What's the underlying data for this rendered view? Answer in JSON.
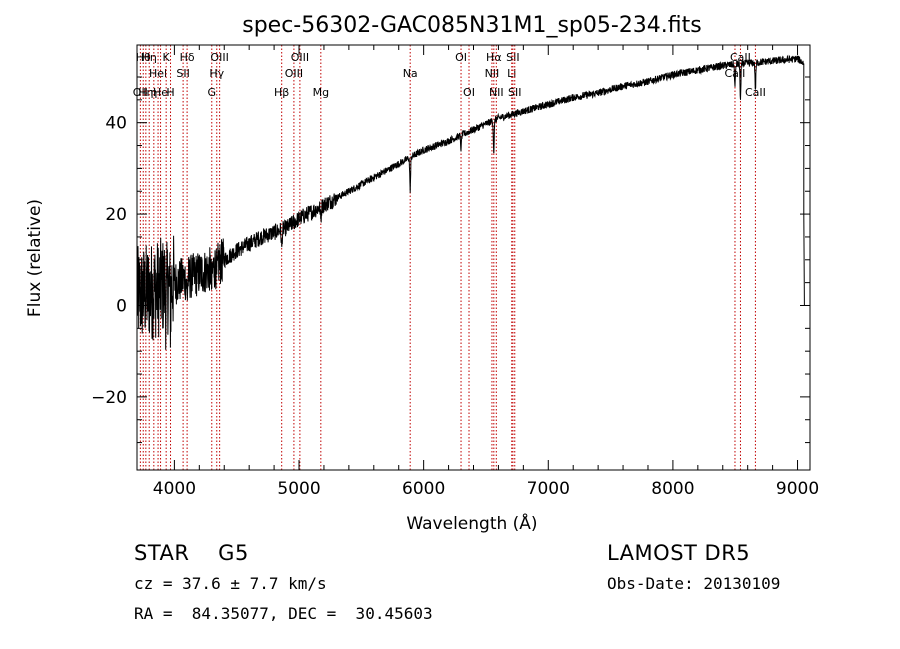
{
  "chart_data": {
    "type": "line",
    "title": "spec-56302-GAC085N31M1_sp05-234.fits",
    "xlabel": "Wavelength (Å)",
    "ylabel": "Flux (relative)",
    "xlim": [
      3700,
      9100
    ],
    "ylim": [
      -36,
      57
    ],
    "xticks": [
      4000,
      5000,
      6000,
      7000,
      8000,
      9000
    ],
    "yticks": [
      -20,
      0,
      20,
      40
    ],
    "xtick_labels": [
      "4000",
      "5000",
      "6000",
      "7000",
      "8000",
      "9000"
    ],
    "ytick_labels": [
      "−20",
      "0",
      "20",
      "40"
    ],
    "continuum": [
      [
        3700,
        2
      ],
      [
        3800,
        3
      ],
      [
        3900,
        4
      ],
      [
        4000,
        5
      ],
      [
        4100,
        6
      ],
      [
        4200,
        7
      ],
      [
        4300,
        8
      ],
      [
        4400,
        10
      ],
      [
        4500,
        12
      ],
      [
        4600,
        13.5
      ],
      [
        4700,
        15
      ],
      [
        4800,
        16
      ],
      [
        4900,
        17
      ],
      [
        5000,
        19
      ],
      [
        5100,
        20.5
      ],
      [
        5200,
        22
      ],
      [
        5400,
        25
      ],
      [
        5600,
        28
      ],
      [
        5800,
        31
      ],
      [
        6000,
        34
      ],
      [
        6200,
        36
      ],
      [
        6400,
        38.5
      ],
      [
        6600,
        41
      ],
      [
        6800,
        42.5
      ],
      [
        7000,
        44
      ],
      [
        7200,
        45.5
      ],
      [
        7400,
        46.5
      ],
      [
        7600,
        48
      ],
      [
        7800,
        49
      ],
      [
        8000,
        50.5
      ],
      [
        8200,
        51.5
      ],
      [
        8400,
        52.5
      ],
      [
        8600,
        53
      ],
      [
        8800,
        53.5
      ],
      [
        9000,
        54
      ],
      [
        9050,
        53
      ]
    ],
    "absorption_features": [
      {
        "wave": 3934,
        "depth": 6
      },
      {
        "wave": 3969,
        "depth": 6
      },
      {
        "wave": 4102,
        "depth": 4
      },
      {
        "wave": 4300,
        "depth": 4
      },
      {
        "wave": 4341,
        "depth": 3
      },
      {
        "wave": 4861,
        "depth": 4
      },
      {
        "wave": 5175,
        "depth": 3
      },
      {
        "wave": 5892,
        "depth": 7
      },
      {
        "wave": 6300,
        "depth": 3
      },
      {
        "wave": 6563,
        "depth": 7
      },
      {
        "wave": 8498,
        "depth": 5
      },
      {
        "wave": 8542,
        "depth": 8
      },
      {
        "wave": 8662,
        "depth": 6
      }
    ],
    "line_markers": [
      {
        "wave": 3727,
        "label": "OII",
        "row": 3
      },
      {
        "wave": 3750,
        "label": "Hθ",
        "row": 1
      },
      {
        "wave": 3771,
        "label": "Hη",
        "row": 3
      },
      {
        "wave": 3798,
        "label": "Hη",
        "row": 1
      },
      {
        "wave": 3835,
        "label": "η",
        "row": 3
      },
      {
        "wave": 3869,
        "label": "Hel",
        "row": 2
      },
      {
        "wave": 3889,
        "label": "He",
        "row": 3
      },
      {
        "wave": 3934,
        "label": "K",
        "row": 1
      },
      {
        "wave": 3969,
        "label": "H",
        "row": 3
      },
      {
        "wave": 4070,
        "label": "SII",
        "row": 2
      },
      {
        "wave": 4102,
        "label": "Hδ",
        "row": 1
      },
      {
        "wave": 4300,
        "label": "G",
        "row": 3
      },
      {
        "wave": 4340,
        "label": "Hγ",
        "row": 2
      },
      {
        "wave": 4363,
        "label": "OIII",
        "row": 1
      },
      {
        "wave": 4861,
        "label": "Hβ",
        "row": 3
      },
      {
        "wave": 4959,
        "label": "OIII",
        "row": 2
      },
      {
        "wave": 5007,
        "label": "OIII",
        "row": 1
      },
      {
        "wave": 5175,
        "label": "Mg",
        "row": 3
      },
      {
        "wave": 5892,
        "label": "Na",
        "row": 2
      },
      {
        "wave": 6300,
        "label": "OI",
        "row": 1
      },
      {
        "wave": 6364,
        "label": "OI",
        "row": 3
      },
      {
        "wave": 6548,
        "label": "NII",
        "row": 2
      },
      {
        "wave": 6563,
        "label": "Hα",
        "row": 1
      },
      {
        "wave": 6583,
        "label": "NII",
        "row": 3
      },
      {
        "wave": 6707,
        "label": "Li",
        "row": 2
      },
      {
        "wave": 6716,
        "label": "SII",
        "row": 1
      },
      {
        "wave": 6731,
        "label": "SII",
        "row": 3
      },
      {
        "wave": 8498,
        "label": "CaII",
        "row": 2
      },
      {
        "wave": 8542,
        "label": "CaII",
        "row": 1
      },
      {
        "wave": 8662,
        "label": "CaII",
        "row": 3
      }
    ]
  },
  "info": {
    "class_line": "STAR    G5",
    "cz_line": "cz = 37.6 ± 7.7 km/s",
    "radec_line": "RA =  84.35077, DEC =  30.45603",
    "survey": "LAMOST DR5",
    "obs_date": "Obs-Date: 20130109"
  }
}
